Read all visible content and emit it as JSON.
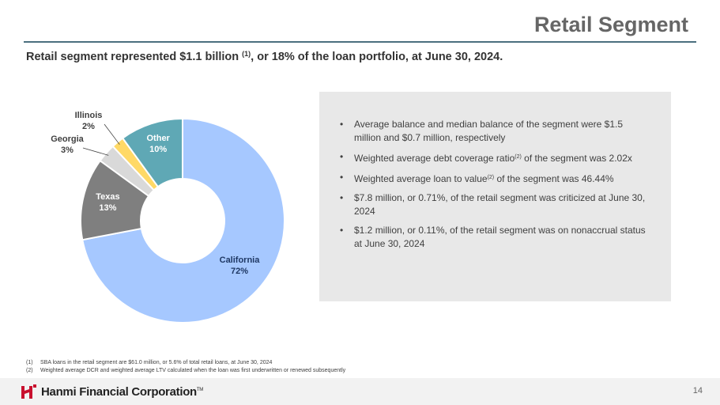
{
  "header": {
    "title": "Retail Segment",
    "headline_pre": "Retail segment represented $1.1 billion ",
    "headline_sup": "(1)",
    "headline_post": ", or 18% of the loan portfolio, at June 30, 2024."
  },
  "chart_data": {
    "type": "pie",
    "variant": "donut",
    "categories": [
      "California",
      "Texas",
      "Georgia",
      "Illinois",
      "Other"
    ],
    "values": [
      72,
      13,
      3,
      2,
      10
    ],
    "labels": [
      "California",
      "Texas",
      "Georgia",
      "Illinois",
      "Other"
    ],
    "value_labels": [
      "72%",
      "13%",
      "3%",
      "2%",
      "10%"
    ],
    "colors": [
      "#a6c8ff",
      "#7f7f7f",
      "#d9d9d9",
      "#ffd966",
      "#5fa8b5"
    ]
  },
  "bullets": [
    {
      "pre": "Average balance and median balance of the segment were $1.5 million and $0.7 million, respectively",
      "sup": "",
      "post": ""
    },
    {
      "pre": "Weighted average debt coverage ratio",
      "sup": "(2)",
      "post": " of the segment was 2.02x"
    },
    {
      "pre": "Weighted average loan to value",
      "sup": "(2)",
      "post": " of the segment was 46.44%"
    },
    {
      "pre": "$7.8 million, or 0.71%, of the retail segment was criticized at June 30, 2024",
      "sup": "",
      "post": ""
    },
    {
      "pre": "$1.2 million, or 0.11%, of the retail segment was on nonaccrual status at June 30, 2024",
      "sup": "",
      "post": ""
    }
  ],
  "footnotes": [
    {
      "num": "(1)",
      "text": "SBA loans in the retail segment are $61.0 million, or 5.6% of total retail loans, at June 30, 2024"
    },
    {
      "num": "(2)",
      "text": "Weighted average DCR and weighted average LTV calculated when the loan was first underwritten or renewed subsequently"
    }
  ],
  "footer": {
    "company": "Hanmi Financial Corporation",
    "tm": "TM",
    "page_number": "14",
    "brand_color": "#c8102e"
  }
}
